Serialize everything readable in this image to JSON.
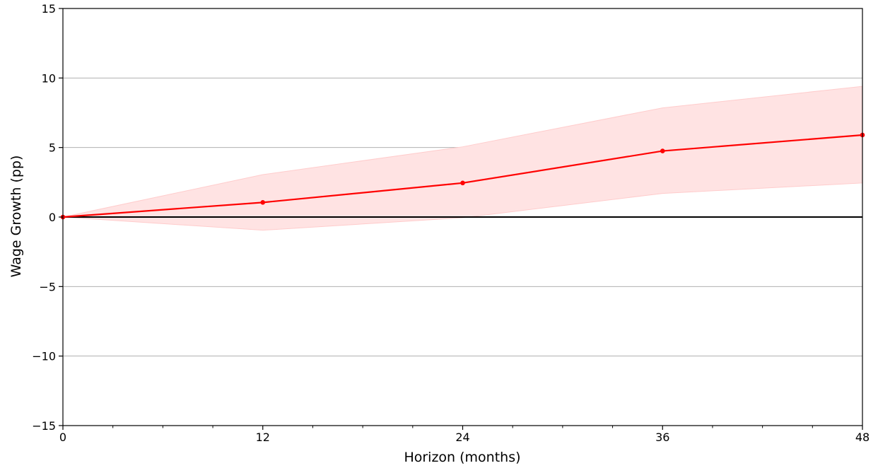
{
  "chart_data": {
    "type": "line",
    "xlabel": "Horizon (months)",
    "ylabel": "Wage Growth (pp)",
    "xlim": [
      0,
      48
    ],
    "ylim": [
      -15,
      15
    ],
    "x_major_ticks": [
      0,
      12,
      24,
      36,
      48
    ],
    "x_tick_labels": [
      "0",
      "12",
      "24",
      "36",
      "48"
    ],
    "x_minor_ticks": [
      3,
      6,
      9,
      15,
      18,
      21,
      27,
      30,
      33,
      39,
      42,
      45
    ],
    "y_ticks": [
      -15,
      -10,
      -5,
      0,
      5,
      10,
      15
    ],
    "y_tick_labels": [
      "−15",
      "−10",
      "−5",
      "0",
      "5",
      "10",
      "15"
    ],
    "grid": "horizontal",
    "zero_line": true,
    "series": [
      {
        "x": [
          0,
          12,
          24,
          36,
          48
        ],
        "values": [
          0,
          1.05,
          2.45,
          4.75,
          5.9
        ],
        "color": "#ff0000",
        "band_lower": [
          0,
          -0.95,
          -0.05,
          1.7,
          2.45
        ],
        "band_upper": [
          0,
          3.05,
          5.05,
          7.85,
          9.4
        ],
        "band_color": "#ffe3e3"
      }
    ]
  }
}
